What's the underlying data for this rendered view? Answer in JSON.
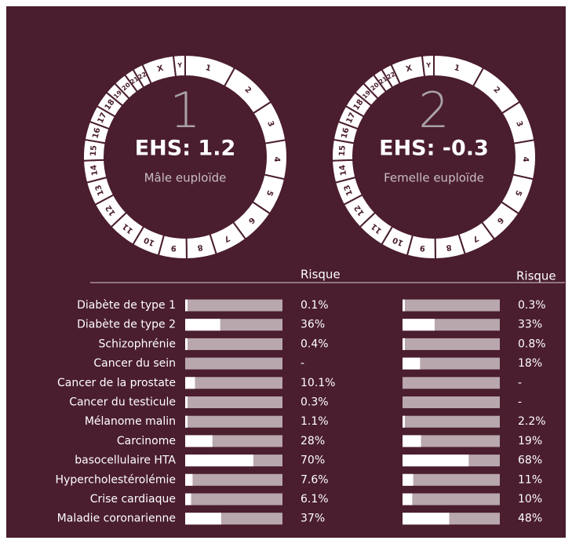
{
  "chromosomes": [
    "X",
    "Y",
    "1",
    "2",
    "3",
    "4",
    "5",
    "6",
    "7",
    "8",
    "9",
    "10",
    "11",
    "12",
    "13",
    "14",
    "15",
    "16",
    "17",
    "18",
    "19",
    "20",
    "21",
    "22"
  ],
  "embryos": [
    {
      "number": "1",
      "score": "EHS: 1.2",
      "label": "Mâle euploïde"
    },
    {
      "number": "2",
      "score": "EHS: -0.3",
      "label": "Femelle euploïde"
    }
  ],
  "table": {
    "headers": [
      "Risque",
      "Risque"
    ],
    "rows": [
      {
        "label": "Diabète de type 1",
        "values": [
          0.1,
          0.3
        ],
        "value_labels": [
          "0.1%",
          "0.3%"
        ]
      },
      {
        "label": "Diabète de type 2",
        "values": [
          36,
          33
        ],
        "value_labels": [
          "36%",
          "33%"
        ]
      },
      {
        "label": "Schizophrénie",
        "values": [
          0.4,
          0.8
        ],
        "value_labels": [
          "0.4%",
          "0.8%"
        ]
      },
      {
        "label": "Cancer du sein",
        "values": [
          null,
          18
        ],
        "value_labels": [
          "-",
          "18%"
        ]
      },
      {
        "label": "Cancer de la prostate",
        "values": [
          10.1,
          null
        ],
        "value_labels": [
          "10.1%",
          "-"
        ]
      },
      {
        "label": "Cancer du testicule",
        "values": [
          0.3,
          null
        ],
        "value_labels": [
          "0.3%",
          "-"
        ]
      },
      {
        "label": "Mélanome malin",
        "values": [
          1.1,
          2.2
        ],
        "value_labels": [
          "1.1%",
          "2.2%"
        ]
      },
      {
        "label": "Carcinome",
        "values": [
          28,
          19
        ],
        "value_labels": [
          "28%",
          "19%"
        ]
      },
      {
        "label": "basocellulaire HTA",
        "values": [
          70,
          68
        ],
        "value_labels": [
          "70%",
          "68%"
        ]
      },
      {
        "label": "Hypercholestérolémie",
        "values": [
          7.6,
          11
        ],
        "value_labels": [
          "7.6%",
          "11%"
        ]
      },
      {
        "label": "Crise cardiaque",
        "values": [
          6.1,
          10
        ],
        "value_labels": [
          "6.1%",
          "10%"
        ]
      },
      {
        "label": "Maladie coronarienne",
        "values": [
          37,
          48
        ],
        "value_labels": [
          "37%",
          "48%"
        ]
      }
    ]
  }
}
